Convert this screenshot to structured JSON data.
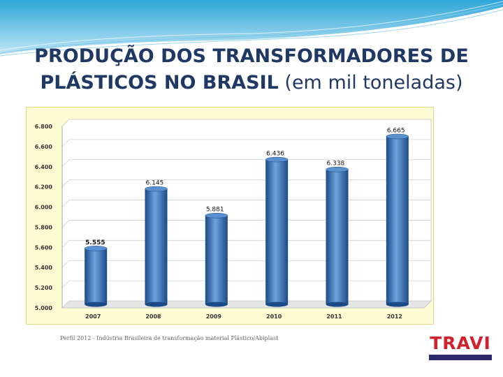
{
  "title": {
    "line1": "PRODUÇÃO DOS TRANSFORMADORES DE",
    "line2_bold": "PLÁSTICOS  NO BRASIL",
    "line2_light": "   (em mil toneladas)"
  },
  "source": "Perfil 2012 - Indústria Brasileira de transformação material Plástico/Abiplast",
  "logo": {
    "text": "TRAVI",
    "text_color": "#d0222c",
    "bar_color": "#2d2a6e"
  },
  "colors": {
    "bar": "#2e6bb5",
    "bar_light": "#6fa3e0",
    "bar_dark": "#1b4a86",
    "plot_bg": "#ffffff",
    "frame_bg": "#fdfbd3",
    "frame_border": "#e2dc86",
    "title": "#1f3864"
  },
  "chart_data": {
    "type": "bar",
    "categories": [
      "2007",
      "2008",
      "2009",
      "2010",
      "2011",
      "2012"
    ],
    "values": [
      5555,
      6145,
      5881,
      6436,
      6338,
      6665
    ],
    "value_labels": [
      "5.555",
      "6.145",
      "5.881",
      "6.436",
      "6.338",
      "6.665"
    ],
    "yticks": [
      "5.000",
      "5.200",
      "5.400",
      "5.600",
      "5.800",
      "6.000",
      "6.200",
      "6.400",
      "6.600",
      "6.800"
    ],
    "ylim": [
      5000,
      6800
    ],
    "title": "",
    "xlabel": "",
    "ylabel": ""
  }
}
